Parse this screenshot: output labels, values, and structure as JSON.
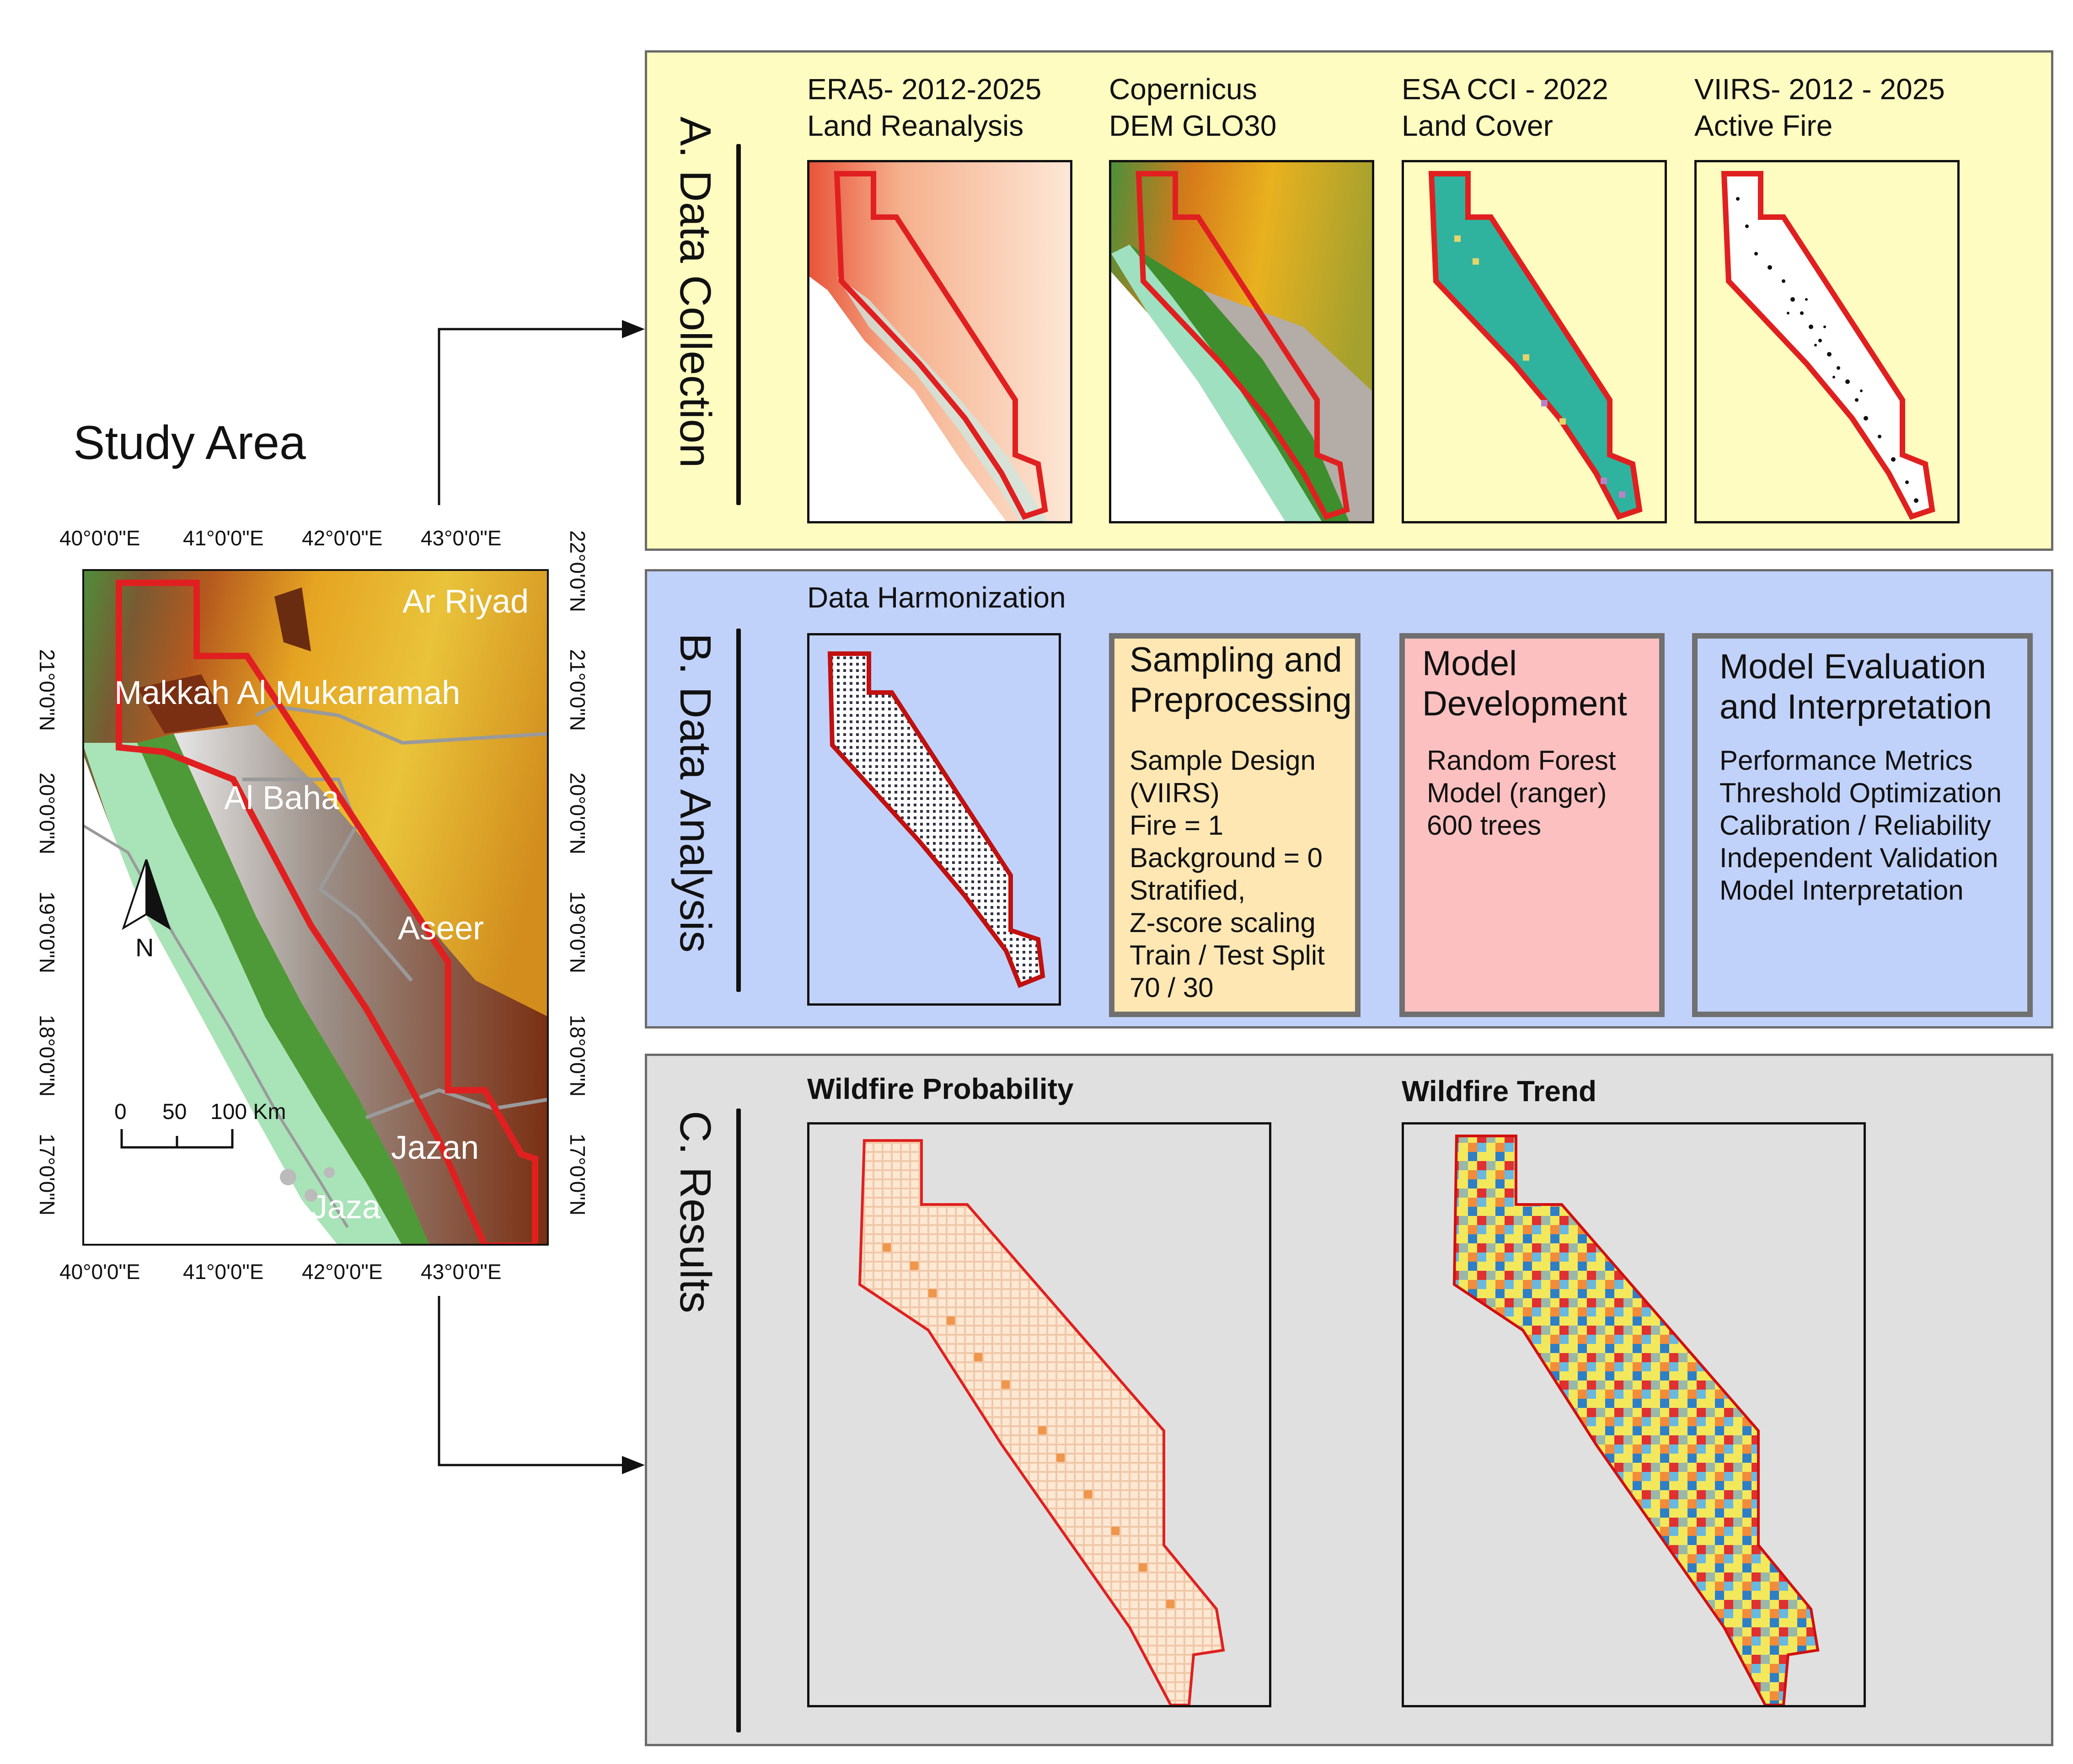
{
  "study_area": {
    "title": "Study Area",
    "lon_ticks": [
      "40°0'0\"E",
      "41°0'0\"E",
      "42°0'0\"E",
      "43°0'0\"E"
    ],
    "lat_ticks": [
      "22°0'0\"N",
      "21°0'0\"N",
      "20°0'0\"N",
      "19°0'0\"N",
      "18°0'0\"N",
      "17°0'0\"N"
    ],
    "regions": [
      "Ar Riyad",
      "Makkah Al Mukarramah",
      "Al Baha",
      "Aseer",
      "Jazan",
      "Jaza"
    ],
    "north_label": "N",
    "scale": [
      "0",
      "50",
      "100 Km"
    ]
  },
  "section_a": {
    "title": "A. Data Collection",
    "sources": [
      {
        "line1": "ERA5- 2012-2025",
        "line2": "Land Reanalysis"
      },
      {
        "line1": "Copernicus",
        "line2": "DEM GLO30"
      },
      {
        "line1": "ESA CCI - 2022",
        "line2": "Land Cover"
      },
      {
        "line1": "VIIRS- 2012 - 2025",
        "line2": "Active Fire"
      }
    ]
  },
  "section_b": {
    "title": "B. Data Analysis",
    "harmonization": "Data Harmonization",
    "sampling": {
      "title": "Sampling and\nPreprocessing",
      "body": "Sample Design\n(VIIRS)\nFire = 1\nBackground = 0\nStratified,\nZ-score scaling\nTrain / Test Split\n70 / 30"
    },
    "model_dev": {
      "title": "Model\nDevelopment",
      "body": "Random Forest\nModel (ranger)\n600 trees"
    },
    "model_eval": {
      "title": "Model Evaluation\nand Interpretation",
      "body": "Performance Metrics\nThreshold Optimization\nCalibration / Reliability\nIndependent Validation\nModel Interpretation"
    }
  },
  "section_c": {
    "title": "C. Results",
    "probability": "Wildfire Probability",
    "trend": "Wildfire Trend"
  },
  "colors": {
    "panel_a": "#fefcc0",
    "panel_b": "#c1d2fa",
    "panel_c": "#e0e0e0",
    "sampling_box": "#fee7b3",
    "model_dev_box": "#fdc0c0",
    "model_eval_box": "#c1d2fa",
    "boundary": "#e02020"
  }
}
